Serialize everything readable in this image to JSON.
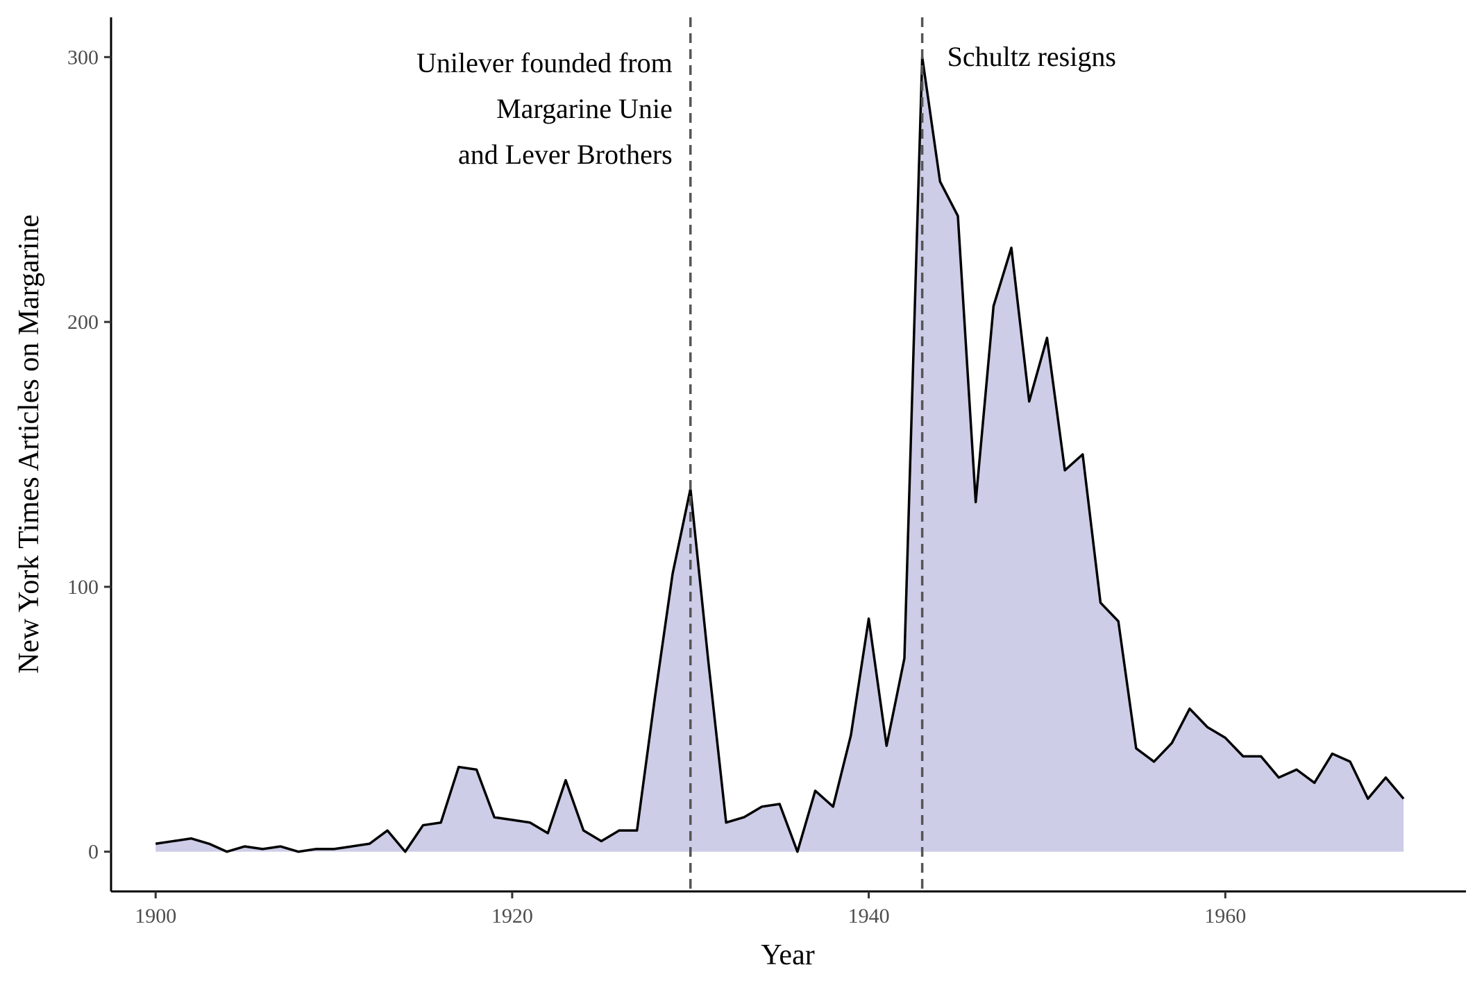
{
  "chart_data": {
    "type": "area",
    "title": "",
    "xlabel": "Year",
    "ylabel": "New York Times Articles on Margarine",
    "xlim": [
      1897.5,
      1973.5
    ],
    "ylim": [
      -15,
      315
    ],
    "x_ticks": [
      1900,
      1920,
      1940,
      1960
    ],
    "y_ticks": [
      0,
      100,
      200,
      300
    ],
    "grid": false,
    "legend": "none",
    "colors": {
      "fill": "#cdcde8",
      "line": "#000000",
      "vline": "#555555"
    },
    "series": [
      {
        "x": [
          1900,
          1901,
          1902,
          1903,
          1904,
          1905,
          1906,
          1907,
          1908,
          1909,
          1910,
          1911,
          1912,
          1913,
          1914,
          1915,
          1916,
          1917,
          1918,
          1919,
          1920,
          1921,
          1922,
          1923,
          1924,
          1925,
          1926,
          1927,
          1928,
          1929,
          1930,
          1931,
          1932,
          1933,
          1934,
          1935,
          1936,
          1937,
          1938,
          1939,
          1940,
          1941,
          1942,
          1943,
          1944,
          1945,
          1946,
          1947,
          1948,
          1949,
          1950,
          1951,
          1952,
          1953,
          1954,
          1955,
          1956,
          1957,
          1958,
          1959,
          1960,
          1961,
          1962,
          1963,
          1964,
          1965,
          1966,
          1967,
          1968,
          1969,
          1970
        ],
        "values": [
          3,
          4,
          5,
          3,
          0,
          2,
          1,
          2,
          0,
          1,
          1,
          2,
          3,
          8,
          0,
          10,
          11,
          32,
          31,
          13,
          12,
          11,
          7,
          27,
          8,
          4,
          8,
          8,
          58,
          105,
          137,
          72,
          11,
          13,
          17,
          18,
          0,
          23,
          17,
          44,
          88,
          40,
          73,
          300,
          253,
          240,
          132,
          206,
          228,
          170,
          194,
          144,
          150,
          94,
          87,
          39,
          34,
          41,
          54,
          47,
          43,
          36,
          36,
          28,
          31,
          26,
          37,
          34,
          20,
          28,
          20
        ]
      }
    ],
    "vlines": [
      {
        "x": 1930,
        "label": [
          "Unilever founded from",
          "Margarine Unie",
          "and Lever Brothers"
        ]
      },
      {
        "x": 1943,
        "label": [
          "Schultz resigns"
        ]
      }
    ]
  }
}
